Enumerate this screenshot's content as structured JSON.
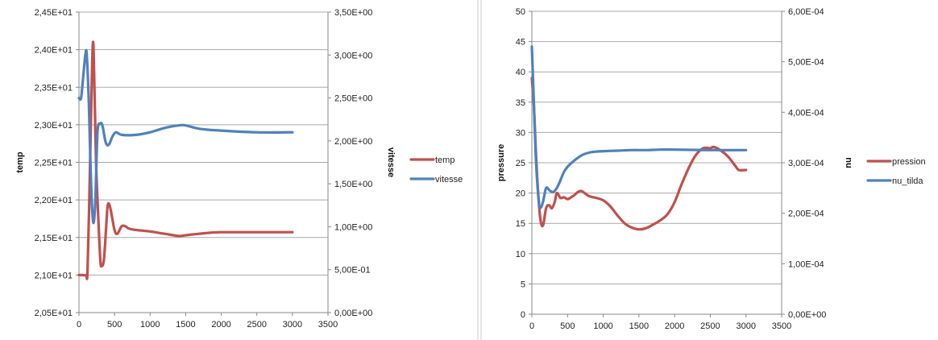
{
  "chart_data": [
    {
      "type": "line",
      "x_axis": {
        "min": 0,
        "max": 3500,
        "step": 500,
        "ticks": [
          "0",
          "500",
          "1000",
          "1500",
          "2000",
          "2500",
          "3000",
          "3500"
        ]
      },
      "y_left": {
        "label": "temp",
        "min": 20.5,
        "max": 24.5,
        "step": 0.5,
        "ticks": [
          "2,05E+01",
          "2,10E+01",
          "2,15E+01",
          "2,20E+01",
          "2,25E+01",
          "2,30E+01",
          "2,35E+01",
          "2,40E+01",
          "2,45E+01"
        ]
      },
      "y_right": {
        "label": "vitesse",
        "min": 0,
        "max": 3.5,
        "step": 0.5,
        "ticks": [
          "0,00E+00",
          "5,00E-01",
          "1,00E+00",
          "1,50E+00",
          "2,00E+00",
          "2,50E+00",
          "3,00E+00",
          "3,50E+00"
        ]
      },
      "grid": true,
      "legend_position": "right",
      "series": [
        {
          "name": "temp",
          "axis": "left",
          "color": "#c0504d",
          "points": [
            [
              0,
              21.0
            ],
            [
              50,
              21.0
            ],
            [
              100,
              21.0
            ],
            [
              120,
              21.05
            ],
            [
              150,
              22.2
            ],
            [
              180,
              23.6
            ],
            [
              200,
              24.1
            ],
            [
              220,
              23.4
            ],
            [
              240,
              22.5
            ],
            [
              270,
              21.8
            ],
            [
              300,
              21.2
            ],
            [
              320,
              21.12
            ],
            [
              350,
              21.2
            ],
            [
              380,
              21.6
            ],
            [
              400,
              21.9
            ],
            [
              420,
              21.95
            ],
            [
              450,
              21.85
            ],
            [
              500,
              21.6
            ],
            [
              540,
              21.55
            ],
            [
              600,
              21.65
            ],
            [
              650,
              21.65
            ],
            [
              700,
              21.62
            ],
            [
              800,
              21.6
            ],
            [
              1000,
              21.58
            ],
            [
              1200,
              21.55
            ],
            [
              1400,
              21.52
            ],
            [
              1500,
              21.53
            ],
            [
              1800,
              21.56
            ],
            [
              2000,
              21.57
            ],
            [
              2500,
              21.57
            ],
            [
              3000,
              21.57
            ]
          ]
        },
        {
          "name": "vitesse",
          "axis": "right",
          "color": "#4f81bd",
          "points": [
            [
              0,
              2.5
            ],
            [
              30,
              2.5
            ],
            [
              60,
              2.75
            ],
            [
              90,
              3.0
            ],
            [
              110,
              3.0
            ],
            [
              140,
              2.4
            ],
            [
              170,
              1.5
            ],
            [
              200,
              1.05
            ],
            [
              230,
              1.3
            ],
            [
              260,
              2.1
            ],
            [
              300,
              2.2
            ],
            [
              330,
              2.18
            ],
            [
              370,
              2.0
            ],
            [
              400,
              1.95
            ],
            [
              430,
              1.97
            ],
            [
              470,
              2.05
            ],
            [
              520,
              2.1
            ],
            [
              600,
              2.07
            ],
            [
              800,
              2.07
            ],
            [
              1000,
              2.1
            ],
            [
              1200,
              2.15
            ],
            [
              1400,
              2.18
            ],
            [
              1500,
              2.18
            ],
            [
              1700,
              2.14
            ],
            [
              2000,
              2.12
            ],
            [
              2500,
              2.1
            ],
            [
              3000,
              2.1
            ]
          ]
        }
      ]
    },
    {
      "type": "line",
      "x_axis": {
        "min": 0,
        "max": 3500,
        "step": 500,
        "ticks": [
          "0",
          "500",
          "1000",
          "1500",
          "2000",
          "2500",
          "3000",
          "3500"
        ]
      },
      "y_left": {
        "label": "pressure",
        "min": 0,
        "max": 50,
        "step": 5,
        "ticks": [
          "0",
          "5",
          "10",
          "15",
          "20",
          "25",
          "30",
          "35",
          "40",
          "45",
          "50"
        ]
      },
      "y_right": {
        "label": "nu",
        "min": 0,
        "max": 0.0006,
        "step": 0.0001,
        "ticks": [
          "0,00E+00",
          "1,00E-04",
          "2,00E-04",
          "3,00E-04",
          "4,00E-04",
          "5,00E-04",
          "6,00E-04"
        ]
      },
      "grid": true,
      "legend_position": "right",
      "series": [
        {
          "name": "pression",
          "axis": "left",
          "color": "#c0504d",
          "points": [
            [
              0,
              39
            ],
            [
              30,
              34
            ],
            [
              60,
              26
            ],
            [
              100,
              18
            ],
            [
              130,
              15
            ],
            [
              160,
              14.8
            ],
            [
              200,
              17.5
            ],
            [
              240,
              18
            ],
            [
              280,
              17.5
            ],
            [
              320,
              18.5
            ],
            [
              350,
              20
            ],
            [
              400,
              19.2
            ],
            [
              450,
              19.3
            ],
            [
              500,
              19
            ],
            [
              550,
              19.3
            ],
            [
              600,
              19.7
            ],
            [
              650,
              20.2
            ],
            [
              700,
              20.3
            ],
            [
              800,
              19.5
            ],
            [
              900,
              19.2
            ],
            [
              1000,
              18.8
            ],
            [
              1100,
              17.8
            ],
            [
              1200,
              16.3
            ],
            [
              1300,
              15
            ],
            [
              1400,
              14.3
            ],
            [
              1500,
              14
            ],
            [
              1600,
              14.2
            ],
            [
              1700,
              14.8
            ],
            [
              1800,
              15.5
            ],
            [
              1900,
              16.5
            ],
            [
              2000,
              18.5
            ],
            [
              2100,
              21.5
            ],
            [
              2200,
              24.2
            ],
            [
              2300,
              26.3
            ],
            [
              2400,
              27.4
            ],
            [
              2500,
              27.4
            ],
            [
              2550,
              27.6
            ],
            [
              2650,
              27
            ],
            [
              2750,
              26
            ],
            [
              2850,
              24.5
            ],
            [
              2900,
              23.8
            ],
            [
              3000,
              23.8
            ]
          ]
        },
        {
          "name": "nu_tilda",
          "axis": "right",
          "color": "#4f81bd",
          "points": [
            [
              0,
              0.00053
            ],
            [
              20,
              0.00045
            ],
            [
              60,
              0.0003
            ],
            [
              100,
              0.00022
            ],
            [
              130,
              0.000212
            ],
            [
              160,
              0.000225
            ],
            [
              200,
              0.00025
            ],
            [
              250,
              0.000245
            ],
            [
              300,
              0.000242
            ],
            [
              350,
              0.00025
            ],
            [
              400,
              0.000265
            ],
            [
              450,
              0.000282
            ],
            [
              500,
              0.000292
            ],
            [
              600,
              0.000305
            ],
            [
              700,
              0.000315
            ],
            [
              800,
              0.00032
            ],
            [
              900,
              0.000322
            ],
            [
              1000,
              0.000323
            ],
            [
              1200,
              0.000324
            ],
            [
              1400,
              0.000325
            ],
            [
              1600,
              0.000325
            ],
            [
              1800,
              0.000326
            ],
            [
              2000,
              0.000326
            ],
            [
              2500,
              0.000325
            ],
            [
              3000,
              0.000325
            ]
          ]
        }
      ]
    }
  ]
}
